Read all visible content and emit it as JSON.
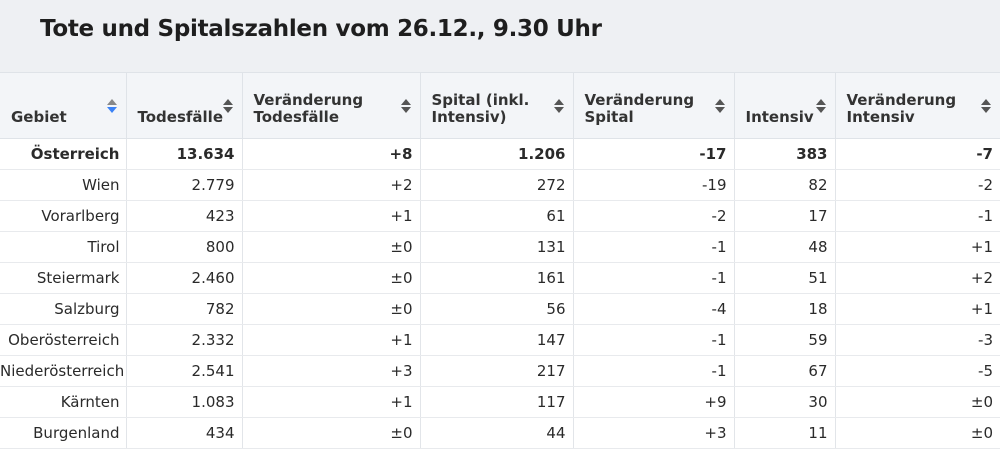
{
  "title": "Tote und Spitalszahlen vom 26.12., 9.30 Uhr",
  "columns": [
    {
      "label": "Gebiet",
      "sort": "active"
    },
    {
      "label": "Todesfälle",
      "sort": "none"
    },
    {
      "label": "Veränderung Todesfälle",
      "sort": "none"
    },
    {
      "label": "Spital (inkl. Intensiv)",
      "sort": "none"
    },
    {
      "label": "Veränderung Spital",
      "sort": "none"
    },
    {
      "label": "Intensiv",
      "sort": "none"
    },
    {
      "label": "Veränderung Intensiv",
      "sort": "none"
    }
  ],
  "rows": [
    [
      "Österreich",
      "13.634",
      "+8",
      "1.206",
      "-17",
      "383",
      "-7"
    ],
    [
      "Wien",
      "2.779",
      "+2",
      "272",
      "-19",
      "82",
      "-2"
    ],
    [
      "Vorarlberg",
      "423",
      "+1",
      "61",
      "-2",
      "17",
      "-1"
    ],
    [
      "Tirol",
      "800",
      "±0",
      "131",
      "-1",
      "48",
      "+1"
    ],
    [
      "Steiermark",
      "2.460",
      "±0",
      "161",
      "-1",
      "51",
      "+2"
    ],
    [
      "Salzburg",
      "782",
      "±0",
      "56",
      "-4",
      "18",
      "+1"
    ],
    [
      "Oberösterreich",
      "2.332",
      "+1",
      "147",
      "-1",
      "59",
      "-3"
    ],
    [
      "Niederösterreich",
      "2.541",
      "+3",
      "217",
      "-1",
      "67",
      "-5"
    ],
    [
      "Kärnten",
      "1.083",
      "+1",
      "117",
      "+9",
      "30",
      "±0"
    ],
    [
      "Burgenland",
      "434",
      "±0",
      "44",
      "+3",
      "11",
      "±0"
    ]
  ]
}
